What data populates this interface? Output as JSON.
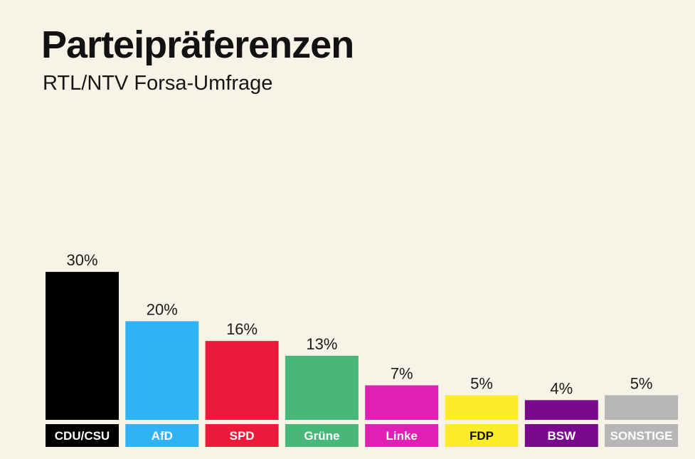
{
  "chart_data": {
    "type": "bar",
    "title": "Parteipräferenzen",
    "subtitle": "RTL/NTV Forsa-Umfrage",
    "categories": [
      "CDU/CSU",
      "AfD",
      "SPD",
      "Grüne",
      "Linke",
      "FDP",
      "BSW",
      "SONSTIGE"
    ],
    "values": [
      30,
      20,
      16,
      13,
      7,
      5,
      4,
      5
    ],
    "value_labels": [
      "30%",
      "20%",
      "16%",
      "13%",
      "7%",
      "5%",
      "4%",
      "5%"
    ],
    "colors": [
      "#000000",
      "#2fb3f4",
      "#ee1a3b",
      "#47b87a",
      "#e01fb4",
      "#fcec2a",
      "#7a0a8c",
      "#b6b6b6"
    ],
    "label_colors": [
      "#ffffff",
      "#ffffff",
      "#ffffff",
      "#ffffff",
      "#ffffff",
      "#111111",
      "#ffffff",
      "#ffffff"
    ],
    "xlabel": "",
    "ylabel": "",
    "unit": "%",
    "grid": false,
    "legend": "none"
  }
}
